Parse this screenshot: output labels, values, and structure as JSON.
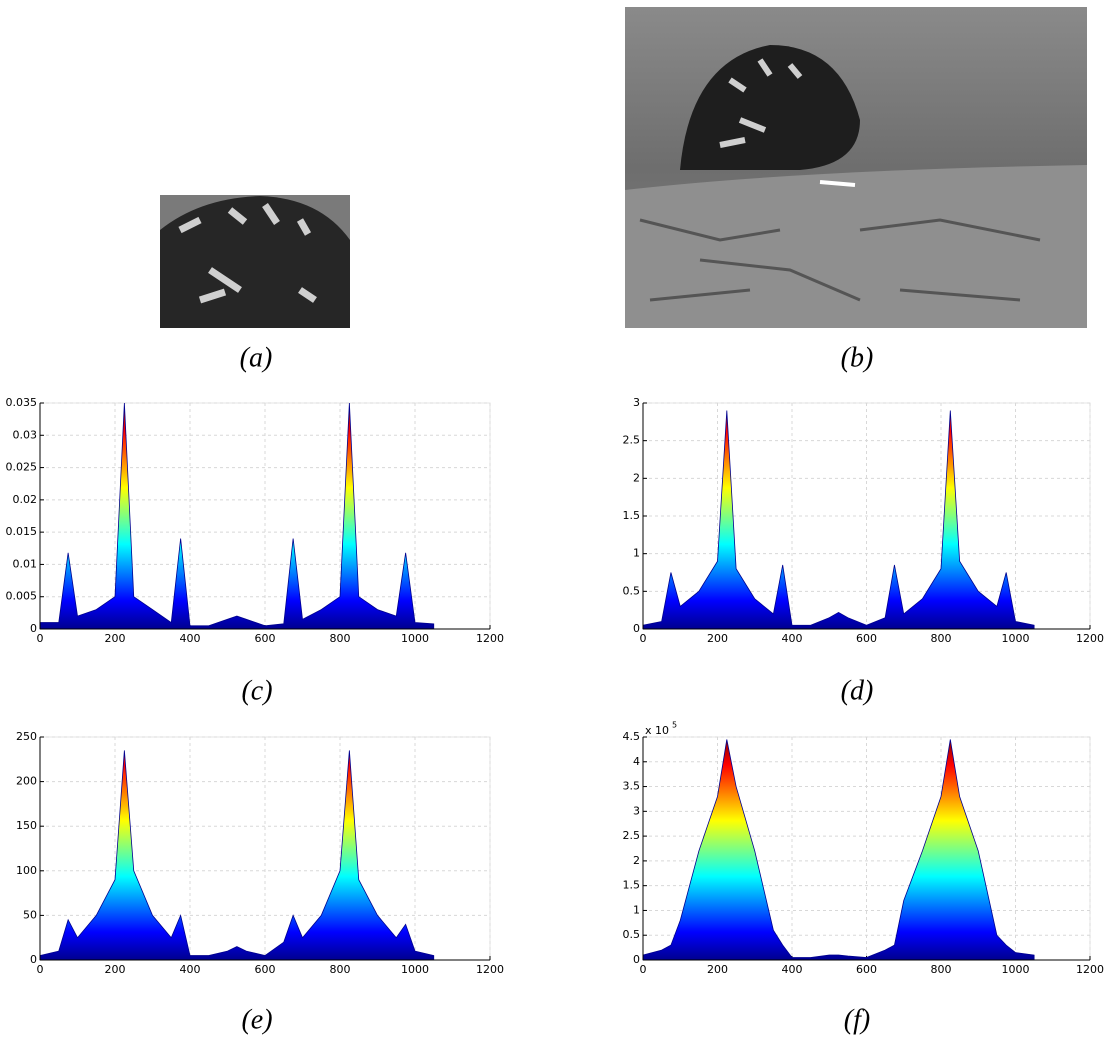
{
  "panels": [
    {
      "caption": "(a)"
    },
    {
      "caption": "(b)"
    }
  ],
  "chart_data": [
    {
      "type": "area",
      "caption": "(c)",
      "colormap": "jet",
      "grid": true,
      "x": [
        0,
        50,
        75,
        100,
        150,
        200,
        225,
        250,
        300,
        350,
        375,
        400,
        450,
        500,
        525,
        550,
        600,
        650,
        675,
        700,
        750,
        800,
        825,
        850,
        900,
        950,
        975,
        1000,
        1050
      ],
      "values": [
        0.001,
        0.001,
        0.0118,
        0.002,
        0.003,
        0.005,
        0.035,
        0.005,
        0.003,
        0.001,
        0.014,
        0.0005,
        0.0005,
        0.0015,
        0.002,
        0.0015,
        0.0005,
        0.0008,
        0.014,
        0.0015,
        0.003,
        0.005,
        0.035,
        0.005,
        0.003,
        0.002,
        0.0118,
        0.001,
        0.0008
      ],
      "xlim": [
        0,
        1200
      ],
      "xticks": [
        0,
        200,
        400,
        600,
        800,
        1000,
        1200
      ],
      "ylim": [
        0,
        0.035
      ],
      "yticks": [
        0,
        0.005,
        0.01,
        0.015,
        0.02,
        0.025,
        0.03,
        0.035
      ]
    },
    {
      "type": "area",
      "caption": "(d)",
      "colormap": "jet",
      "grid": true,
      "x": [
        0,
        50,
        75,
        100,
        150,
        200,
        225,
        250,
        300,
        350,
        375,
        400,
        450,
        500,
        525,
        550,
        600,
        650,
        675,
        700,
        750,
        800,
        825,
        850,
        900,
        950,
        975,
        1000,
        1050
      ],
      "values": [
        0.05,
        0.1,
        0.75,
        0.3,
        0.5,
        0.9,
        2.9,
        0.8,
        0.4,
        0.2,
        0.85,
        0.05,
        0.05,
        0.15,
        0.22,
        0.15,
        0.05,
        0.15,
        0.85,
        0.2,
        0.4,
        0.8,
        2.9,
        0.9,
        0.5,
        0.3,
        0.75,
        0.1,
        0.05
      ],
      "xlim": [
        0,
        1200
      ],
      "xticks": [
        0,
        200,
        400,
        600,
        800,
        1000,
        1200
      ],
      "ylim": [
        0,
        3
      ],
      "yticks": [
        0,
        0.5,
        1,
        1.5,
        2,
        2.5,
        3
      ]
    },
    {
      "type": "area",
      "caption": "(e)",
      "colormap": "jet",
      "grid": true,
      "x": [
        0,
        50,
        75,
        100,
        150,
        200,
        225,
        250,
        300,
        350,
        375,
        400,
        450,
        500,
        525,
        550,
        600,
        650,
        675,
        700,
        750,
        800,
        825,
        850,
        900,
        950,
        975,
        1000,
        1050
      ],
      "values": [
        5,
        10,
        45,
        25,
        50,
        90,
        235,
        100,
        50,
        25,
        50,
        5,
        5,
        10,
        15,
        10,
        5,
        20,
        50,
        25,
        50,
        100,
        235,
        90,
        50,
        25,
        40,
        10,
        5
      ],
      "xlim": [
        0,
        1200
      ],
      "xticks": [
        0,
        200,
        400,
        600,
        800,
        1000,
        1200
      ],
      "ylim": [
        0,
        250
      ],
      "yticks": [
        0,
        50,
        100,
        150,
        200,
        250
      ]
    },
    {
      "type": "area",
      "caption": "(f)",
      "colormap": "jet",
      "grid": true,
      "y_multiplier": {
        "base": "x 10",
        "exponent": "5"
      },
      "x": [
        0,
        50,
        75,
        100,
        150,
        200,
        225,
        250,
        300,
        350,
        375,
        400,
        450,
        500,
        525,
        550,
        600,
        650,
        675,
        700,
        750,
        800,
        825,
        850,
        900,
        950,
        975,
        1000,
        1050
      ],
      "values": [
        0.1,
        0.2,
        0.3,
        0.8,
        2.2,
        3.3,
        4.45,
        3.5,
        2.2,
        0.6,
        0.3,
        0.05,
        0.05,
        0.1,
        0.1,
        0.08,
        0.05,
        0.2,
        0.3,
        1.2,
        2.2,
        3.3,
        4.45,
        3.3,
        2.2,
        0.5,
        0.3,
        0.15,
        0.1
      ],
      "xlim": [
        0,
        1200
      ],
      "xticks": [
        0,
        200,
        400,
        600,
        800,
        1000,
        1200
      ],
      "ylim": [
        0,
        4.5
      ],
      "yticks": [
        0,
        0.5,
        1,
        1.5,
        2,
        2.5,
        3,
        3.5,
        4,
        4.5
      ]
    }
  ]
}
